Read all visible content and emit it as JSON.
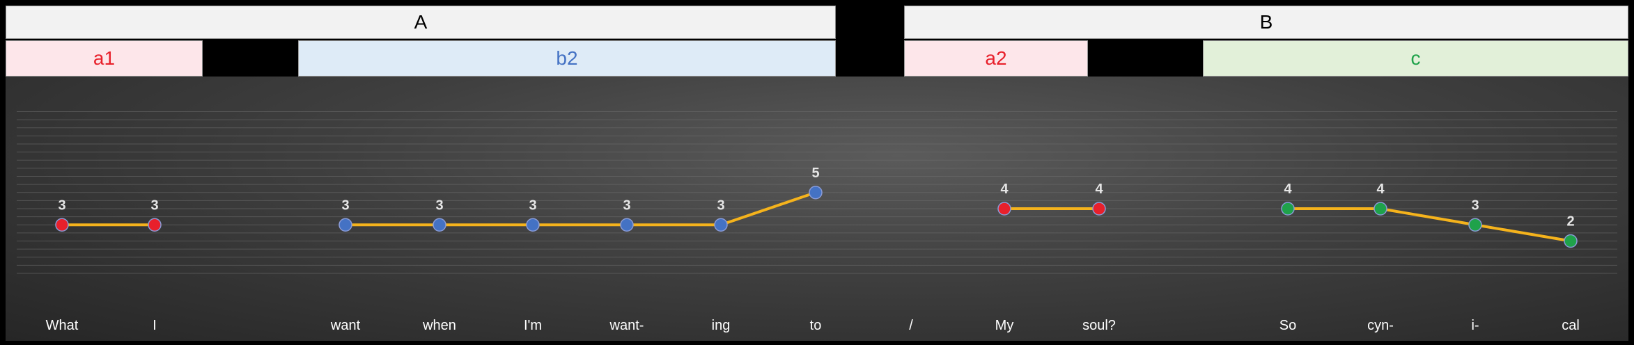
{
  "sections": [
    {
      "label": "A"
    },
    {
      "label": "B"
    }
  ],
  "subsections": [
    {
      "label": "a1",
      "color": "#e8202b",
      "fill": "#fde6ea"
    },
    {
      "label": "b2",
      "color": "#4472c4",
      "fill": "#deebf7"
    },
    {
      "label": "a2",
      "color": "#e8202b",
      "fill": "#fde6ea"
    },
    {
      "label": "c",
      "color": "#1fa24a",
      "fill": "#e2f0d9"
    }
  ],
  "chart_data": {
    "type": "line",
    "title": "",
    "xlabel": "",
    "ylabel": "",
    "categories": [
      "What",
      "I",
      "want",
      "when",
      "I'm",
      "want-",
      "ing",
      "to",
      "/",
      "My",
      "soul?",
      "So",
      "cyn-",
      "i-",
      "cal"
    ],
    "ylim": [
      0,
      10
    ],
    "grid": true,
    "line_color": "#f5b31c",
    "series": [
      {
        "group": "a1",
        "color": "#e8202b",
        "points": [
          {
            "x": "What",
            "y": 3
          },
          {
            "x": "I",
            "y": 3
          }
        ]
      },
      {
        "group": "b2",
        "color": "#4472c4",
        "points": [
          {
            "x": "want",
            "y": 3
          },
          {
            "x": "when",
            "y": 3
          },
          {
            "x": "I'm",
            "y": 3
          },
          {
            "x": "want-",
            "y": 3
          },
          {
            "x": "ing",
            "y": 3
          },
          {
            "x": "to",
            "y": 5
          }
        ]
      },
      {
        "group": "a2",
        "color": "#e8202b",
        "points": [
          {
            "x": "My",
            "y": 4
          },
          {
            "x": "soul?",
            "y": 4
          }
        ]
      },
      {
        "group": "c",
        "color": "#1fa24a",
        "points": [
          {
            "x": "So",
            "y": 4
          },
          {
            "x": "cyn-",
            "y": 4
          },
          {
            "x": "i-",
            "y": 3
          },
          {
            "x": "cal",
            "y": 2
          }
        ]
      }
    ]
  }
}
